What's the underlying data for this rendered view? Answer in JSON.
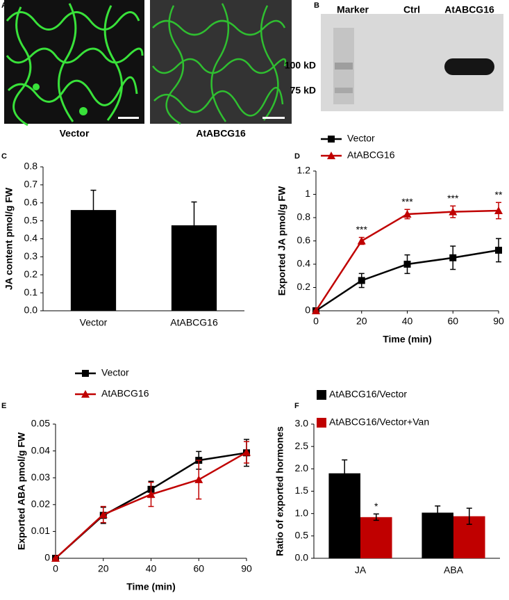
{
  "figure": {
    "panel_a": {
      "letter": "A",
      "labels": [
        "Vector",
        "AtABCG16"
      ]
    },
    "panel_b": {
      "letter": "B",
      "lanes": [
        "Marker",
        "Ctrl",
        "AtABCG16"
      ],
      "sizes": [
        "100 kD",
        "75 kD"
      ]
    }
  },
  "chart_data": [
    {
      "type": "bar",
      "panel": "C",
      "ylabel": "JA content pmol/g FW",
      "categories": [
        "Vector",
        "AtABCG16"
      ],
      "values": [
        0.56,
        0.475
      ],
      "errors": [
        0.11,
        0.13
      ],
      "color": "#000000",
      "ylim": [
        0,
        0.8
      ],
      "yticks": [
        {
          "value": 0,
          "label": "0.0"
        },
        0.1,
        0.2,
        0.3,
        0.4,
        0.5,
        0.6,
        0.7,
        0.8
      ]
    },
    {
      "type": "line",
      "panel": "D",
      "xlabel": "Time (min)",
      "ylabel": "Exported JA pmol/g FW",
      "categories": [
        "0",
        "20",
        "40",
        "60",
        "90"
      ],
      "series": [
        {
          "name": "Vector",
          "color": "#000000",
          "marker": "square",
          "values": [
            0,
            0.26,
            0.4,
            0.455,
            0.52
          ],
          "errors": [
            0,
            0.06,
            0.08,
            0.1,
            0.1
          ]
        },
        {
          "name": "AtABCG16",
          "color": "#c00000",
          "marker": "triangle",
          "values": [
            0,
            0.6,
            0.83,
            0.85,
            0.86
          ],
          "errors": [
            0,
            0.03,
            0.04,
            0.05,
            0.07
          ],
          "annotations": [
            null,
            "***",
            "***",
            "***",
            "**"
          ]
        }
      ],
      "ylim": [
        0,
        1.2
      ],
      "yticks": [
        0,
        0.2,
        0.4,
        0.6,
        0.8,
        1,
        1.2
      ],
      "legend": "upper left"
    },
    {
      "type": "line",
      "panel": "E",
      "xlabel": "Time (min)",
      "ylabel": "Exported ABA pmol/g FW",
      "categories": [
        "0",
        "20",
        "40",
        "60",
        "90"
      ],
      "series": [
        {
          "name": "Vector",
          "color": "#000000",
          "marker": "square",
          "values": [
            0,
            0.016,
            0.0257,
            0.0365,
            0.0393
          ],
          "errors": [
            0,
            0.003,
            0.003,
            0.0033,
            0.005
          ]
        },
        {
          "name": "AtABCG16",
          "color": "#c00000",
          "marker": "triangle",
          "values": [
            0,
            0.0163,
            0.0238,
            0.0293,
            0.0395
          ],
          "errors": [
            0,
            0.003,
            0.0045,
            0.0072,
            0.004
          ]
        }
      ],
      "ylim": [
        0,
        0.05
      ],
      "yticks": [
        0,
        0.01,
        0.02,
        0.03,
        0.04,
        0.05
      ],
      "legend": "upper left"
    },
    {
      "type": "bar",
      "panel": "F",
      "ylabel": "Ratio of exported hormones",
      "categories": [
        "JA",
        "ABA"
      ],
      "series": [
        {
          "name": "AtABCG16/Vector",
          "color": "#000000",
          "values": [
            1.9,
            1.02
          ],
          "errors": [
            0.3,
            0.15
          ]
        },
        {
          "name": "AtABCG16/Vector+Van",
          "color": "#c00000",
          "values": [
            0.92,
            0.94
          ],
          "errors": [
            0.07,
            0.18
          ],
          "annotations": [
            "*",
            null
          ]
        }
      ],
      "ylim": [
        0,
        3.0
      ],
      "yticks": [
        {
          "value": 0,
          "label": "0.0"
        },
        0.5,
        {
          "value": 1,
          "label": "1.0"
        },
        1.5,
        {
          "value": 2,
          "label": "2.0"
        },
        2.5,
        {
          "value": 3,
          "label": "3.0"
        }
      ],
      "legend": "upper left"
    }
  ]
}
